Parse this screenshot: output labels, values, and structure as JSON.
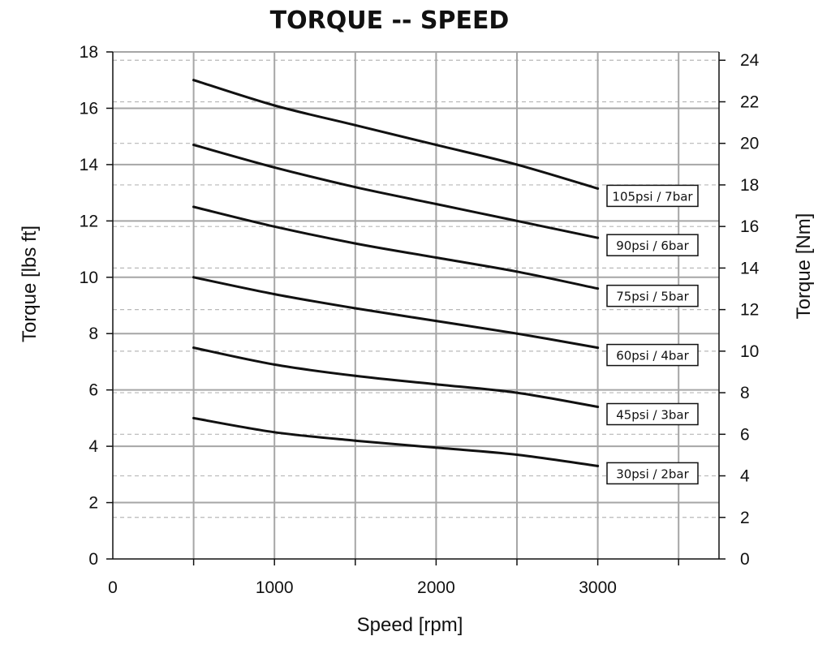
{
  "chart_data": {
    "type": "line",
    "title": "TORQUE -- SPEED",
    "xlabel": "Speed [rpm]",
    "ylabel": "Torque [lbs ft]",
    "y2label": "Torque [Nm]",
    "xlim": [
      0,
      3750
    ],
    "ylim": [
      0,
      18
    ],
    "y2lim": [
      0,
      24.4
    ],
    "xticks": [
      0,
      1000,
      2000,
      3000
    ],
    "yticks": [
      0,
      2,
      4,
      6,
      8,
      10,
      12,
      14,
      16,
      18
    ],
    "y2ticks": [
      0,
      2,
      4,
      6,
      8,
      10,
      12,
      14,
      16,
      18,
      20,
      22,
      24
    ],
    "x_gridlines": [
      500,
      1000,
      1500,
      2000,
      2500,
      3000,
      3500
    ],
    "grid": true,
    "series": [
      {
        "name": "105psi / 7bar",
        "x": [
          500,
          1000,
          1500,
          2000,
          2500,
          3000
        ],
        "values": [
          17.0,
          16.1,
          15.4,
          14.7,
          14.0,
          13.15
        ]
      },
      {
        "name": "90psi / 6bar",
        "x": [
          500,
          1000,
          1500,
          2000,
          2500,
          3000
        ],
        "values": [
          14.7,
          13.9,
          13.2,
          12.6,
          12.0,
          11.4
        ]
      },
      {
        "name": "75psi / 5bar",
        "x": [
          500,
          1000,
          1500,
          2000,
          2500,
          3000
        ],
        "values": [
          12.5,
          11.8,
          11.2,
          10.7,
          10.2,
          9.6
        ]
      },
      {
        "name": "60psi / 4bar",
        "x": [
          500,
          1000,
          1500,
          2000,
          2500,
          3000
        ],
        "values": [
          10.0,
          9.4,
          8.9,
          8.45,
          8.0,
          7.5
        ]
      },
      {
        "name": "45psi / 3bar",
        "x": [
          500,
          1000,
          1500,
          2000,
          2500,
          3000
        ],
        "values": [
          7.5,
          6.9,
          6.5,
          6.2,
          5.9,
          5.4
        ]
      },
      {
        "name": "30psi / 2bar",
        "x": [
          500,
          1000,
          1500,
          2000,
          2500,
          3000
        ],
        "values": [
          5.0,
          4.5,
          4.2,
          3.95,
          3.7,
          3.3
        ]
      }
    ]
  }
}
